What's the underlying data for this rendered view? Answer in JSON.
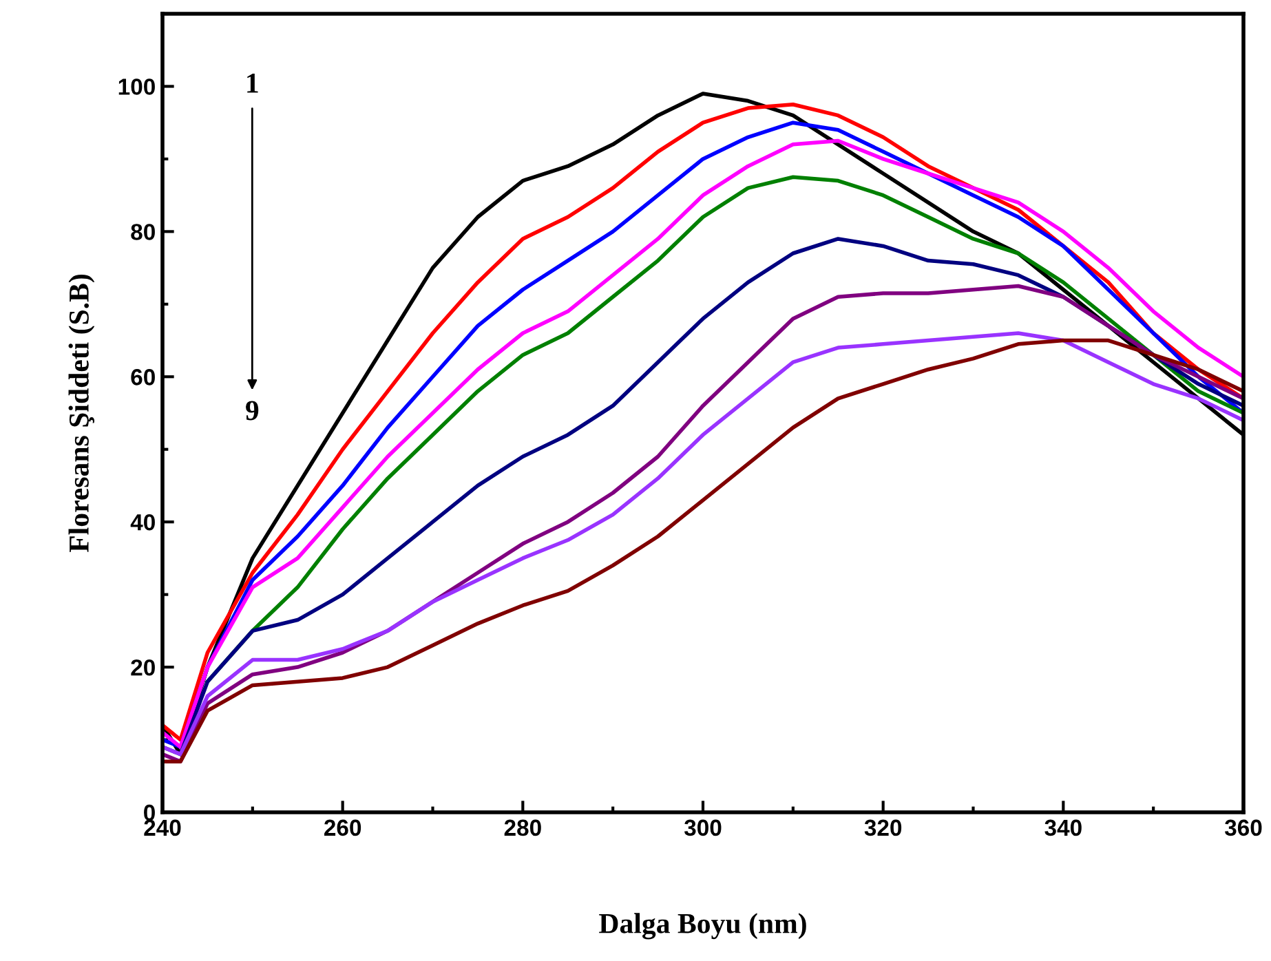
{
  "chart_data": {
    "type": "line",
    "xlabel": "Dalga Boyu (nm)",
    "ylabel": "Floresans Şiddeti (S.B)",
    "x": [
      240,
      242,
      245,
      250,
      255,
      260,
      265,
      270,
      275,
      280,
      285,
      290,
      295,
      300,
      305,
      310,
      315,
      320,
      325,
      330,
      335,
      340,
      345,
      350,
      355,
      360
    ],
    "series": [
      {
        "color": "#000000",
        "values": [
          12,
          8,
          20,
          35,
          45,
          55,
          65,
          75,
          82,
          87,
          89,
          92,
          96,
          99,
          98,
          96,
          92,
          88,
          84,
          80,
          77,
          72,
          67,
          62,
          57,
          52
        ]
      },
      {
        "color": "#ff0000",
        "values": [
          12,
          10,
          22,
          33,
          41,
          50,
          58,
          66,
          73,
          79,
          82,
          86,
          91,
          95,
          97,
          97.5,
          96,
          93,
          89,
          86,
          83,
          78,
          73,
          66,
          61,
          57
        ]
      },
      {
        "color": "#0000ff",
        "values": [
          10,
          9,
          20,
          32,
          38,
          45,
          53,
          60,
          67,
          72,
          76,
          80,
          85,
          90,
          93,
          95,
          94,
          91,
          88,
          85,
          82,
          78,
          72,
          66,
          60,
          55
        ]
      },
      {
        "color": "#ff00ff",
        "values": [
          11,
          9,
          20,
          31,
          35,
          42,
          49,
          55,
          61,
          66,
          69,
          74,
          79,
          85,
          89,
          92,
          92.5,
          90,
          88,
          86,
          84,
          80,
          75,
          69,
          64,
          60
        ]
      },
      {
        "color": "#008000",
        "values": [
          null,
          null,
          18,
          25,
          31,
          39,
          46,
          52,
          58,
          63,
          66,
          71,
          76,
          82,
          86,
          87.5,
          87,
          85,
          82,
          79,
          77,
          73,
          68,
          63,
          58,
          55
        ]
      },
      {
        "color": "#000080",
        "values": [
          9,
          8,
          18,
          25,
          26.5,
          30,
          35,
          40,
          45,
          49,
          52,
          56,
          62,
          68,
          73,
          77,
          79,
          78,
          76,
          75.5,
          74,
          71,
          67,
          63,
          59,
          56
        ]
      },
      {
        "color": "#800080",
        "values": [
          8,
          7,
          15,
          19,
          20,
          22,
          25,
          29,
          33,
          37,
          40,
          44,
          49,
          56,
          62,
          68,
          71,
          71.5,
          71.5,
          72,
          72.5,
          71,
          67,
          63,
          60,
          57
        ]
      },
      {
        "color": "#9933ff",
        "values": [
          9,
          8,
          16,
          21,
          21,
          22.5,
          25,
          29,
          32,
          35,
          37.5,
          41,
          46,
          52,
          57,
          62,
          64,
          64.5,
          65,
          65.5,
          66,
          65,
          62,
          59,
          57,
          54
        ]
      },
      {
        "color": "#800000",
        "values": [
          7,
          7,
          14,
          17.5,
          18,
          18.5,
          20,
          23,
          26,
          28.5,
          30.5,
          34,
          38,
          43,
          48,
          53,
          57,
          59,
          61,
          62.5,
          64.5,
          65,
          65,
          63,
          61,
          58
        ]
      }
    ],
    "xlim": [
      240,
      360
    ],
    "xticks": [
      240,
      260,
      280,
      300,
      320,
      340,
      360
    ],
    "ylim": [
      0,
      110
    ],
    "yticks": [
      0,
      20,
      40,
      60,
      80,
      100
    ],
    "grid": false,
    "legend": false,
    "marker": "none",
    "line_style": "solid",
    "annotations": [
      "1",
      "9"
    ]
  }
}
